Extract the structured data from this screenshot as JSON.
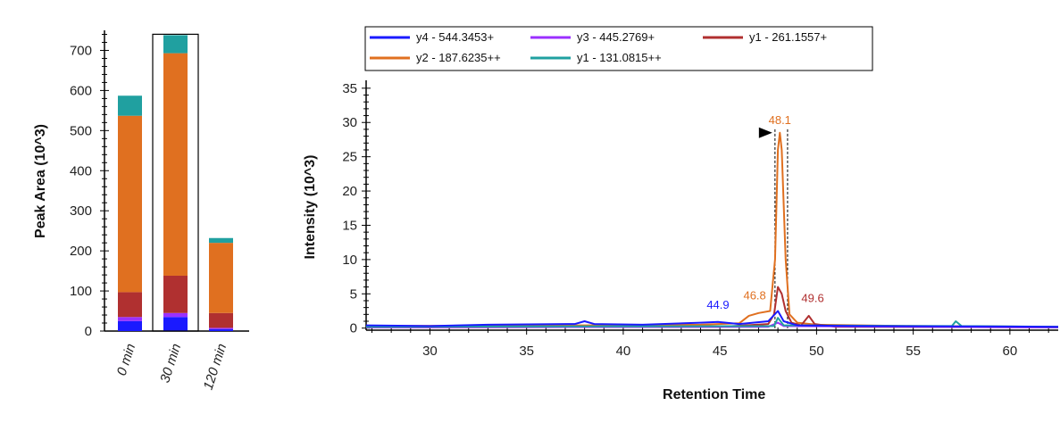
{
  "chart_data": [
    {
      "type": "bar",
      "stacked": true,
      "ylabel": "Peak Area (10^3)",
      "ylim": [
        0,
        750
      ],
      "yticks": [
        "0",
        "100",
        "200",
        "300",
        "400",
        "500",
        "600",
        "700"
      ],
      "categories": [
        "0 min",
        "30 min",
        "120 min"
      ],
      "selected_category": "30 min",
      "series": [
        {
          "key": "y4",
          "color": "#1a1aff",
          "values": [
            25,
            35,
            5
          ]
        },
        {
          "key": "y3",
          "color": "#9b30ff",
          "values": [
            10,
            10,
            3
          ]
        },
        {
          "key": "y1a",
          "color": "#b03030",
          "values": [
            62,
            93,
            37
          ]
        },
        {
          "key": "y2",
          "color": "#e07020",
          "values": [
            440,
            555,
            175
          ]
        },
        {
          "key": "y1b",
          "color": "#20a0a0",
          "values": [
            50,
            45,
            12
          ]
        }
      ]
    },
    {
      "type": "line",
      "xlabel": "Retention Time",
      "ylabel": "Intensity (10^3)",
      "xlim": [
        26.7,
        62.5
      ],
      "ylim": [
        -0.3,
        35.5
      ],
      "xticks": [
        "30",
        "35",
        "40",
        "45",
        "50",
        "55",
        "60"
      ],
      "yticks": [
        "0",
        "5",
        "10",
        "15",
        "20",
        "25",
        "30",
        "35"
      ],
      "legend": [
        {
          "label": "y4 - 544.3453+",
          "color": "#1a1aff"
        },
        {
          "label": "y3 - 445.2769+",
          "color": "#9b30ff"
        },
        {
          "label": "y1 - 261.1557+",
          "color": "#b03030"
        },
        {
          "label": "y2 - 187.6235++",
          "color": "#e07020"
        },
        {
          "label": "y1 - 131.0815++",
          "color": "#20a0a0"
        }
      ],
      "series": [
        {
          "key": "y2",
          "color": "#e07020",
          "points": [
            [
              26.7,
              0.3
            ],
            [
              38.0,
              0.4
            ],
            [
              44.0,
              0.5
            ],
            [
              46.0,
              0.7
            ],
            [
              46.5,
              1.8
            ],
            [
              47.0,
              2.2
            ],
            [
              47.6,
              2.5
            ],
            [
              47.85,
              10
            ],
            [
              48.0,
              26
            ],
            [
              48.1,
              28.5
            ],
            [
              48.2,
              26
            ],
            [
              48.4,
              10
            ],
            [
              48.6,
              2
            ],
            [
              49.0,
              0.8
            ],
            [
              50.0,
              0.5
            ],
            [
              55.0,
              0.3
            ],
            [
              62.5,
              0.2
            ]
          ]
        },
        {
          "key": "y1a",
          "color": "#b03030",
          "points": [
            [
              26.7,
              0.1
            ],
            [
              45.0,
              0.2
            ],
            [
              47.5,
              0.6
            ],
            [
              47.8,
              2.0
            ],
            [
              48.0,
              6.0
            ],
            [
              48.2,
              5.0
            ],
            [
              48.4,
              2.5
            ],
            [
              48.7,
              0.8
            ],
            [
              49.2,
              0.4
            ],
            [
              49.6,
              1.8
            ],
            [
              49.9,
              0.6
            ],
            [
              51.0,
              0.2
            ],
            [
              62.5,
              0.1
            ]
          ]
        },
        {
          "key": "y3",
          "color": "#9b30ff",
          "points": [
            [
              26.7,
              0.1
            ],
            [
              47.5,
              0.2
            ],
            [
              48.0,
              0.8
            ],
            [
              48.3,
              0.3
            ],
            [
              62.5,
              0.1
            ]
          ]
        },
        {
          "key": "y1b",
          "color": "#20a0a0",
          "points": [
            [
              26.7,
              0.2
            ],
            [
              47.8,
              0.3
            ],
            [
              48.0,
              1.5
            ],
            [
              48.3,
              0.4
            ],
            [
              57.0,
              0.3
            ],
            [
              57.2,
              1.0
            ],
            [
              57.5,
              0.3
            ],
            [
              62.5,
              0.2
            ]
          ]
        },
        {
          "key": "y4",
          "color": "#1a1aff",
          "points": [
            [
              26.7,
              0.4
            ],
            [
              30.0,
              0.3
            ],
            [
              33.0,
              0.5
            ],
            [
              37.5,
              0.6
            ],
            [
              38.0,
              1.0
            ],
            [
              38.5,
              0.6
            ],
            [
              41.0,
              0.5
            ],
            [
              44.0,
              0.8
            ],
            [
              44.9,
              0.9
            ],
            [
              46.0,
              0.6
            ],
            [
              47.5,
              1.0
            ],
            [
              48.0,
              2.5
            ],
            [
              48.3,
              1.0
            ],
            [
              49.0,
              0.4
            ],
            [
              52.0,
              0.3
            ],
            [
              62.5,
              0.2
            ]
          ]
        }
      ],
      "peak_labels": [
        {
          "text": "44.9",
          "x": 44.9,
          "y": 2.8,
          "color": "#1a1aff"
        },
        {
          "text": "46.8",
          "x": 46.8,
          "y": 4.2,
          "color": "#e07020"
        },
        {
          "text": "48.1",
          "x": 48.1,
          "y": 29.8,
          "color": "#e07020"
        },
        {
          "text": "49.6",
          "x": 49.8,
          "y": 3.8,
          "color": "#b03030"
        }
      ],
      "integration_bounds": [
        47.85,
        48.5
      ],
      "peak_marker_x": 47.85,
      "peak_marker_y": 28.5
    }
  ]
}
